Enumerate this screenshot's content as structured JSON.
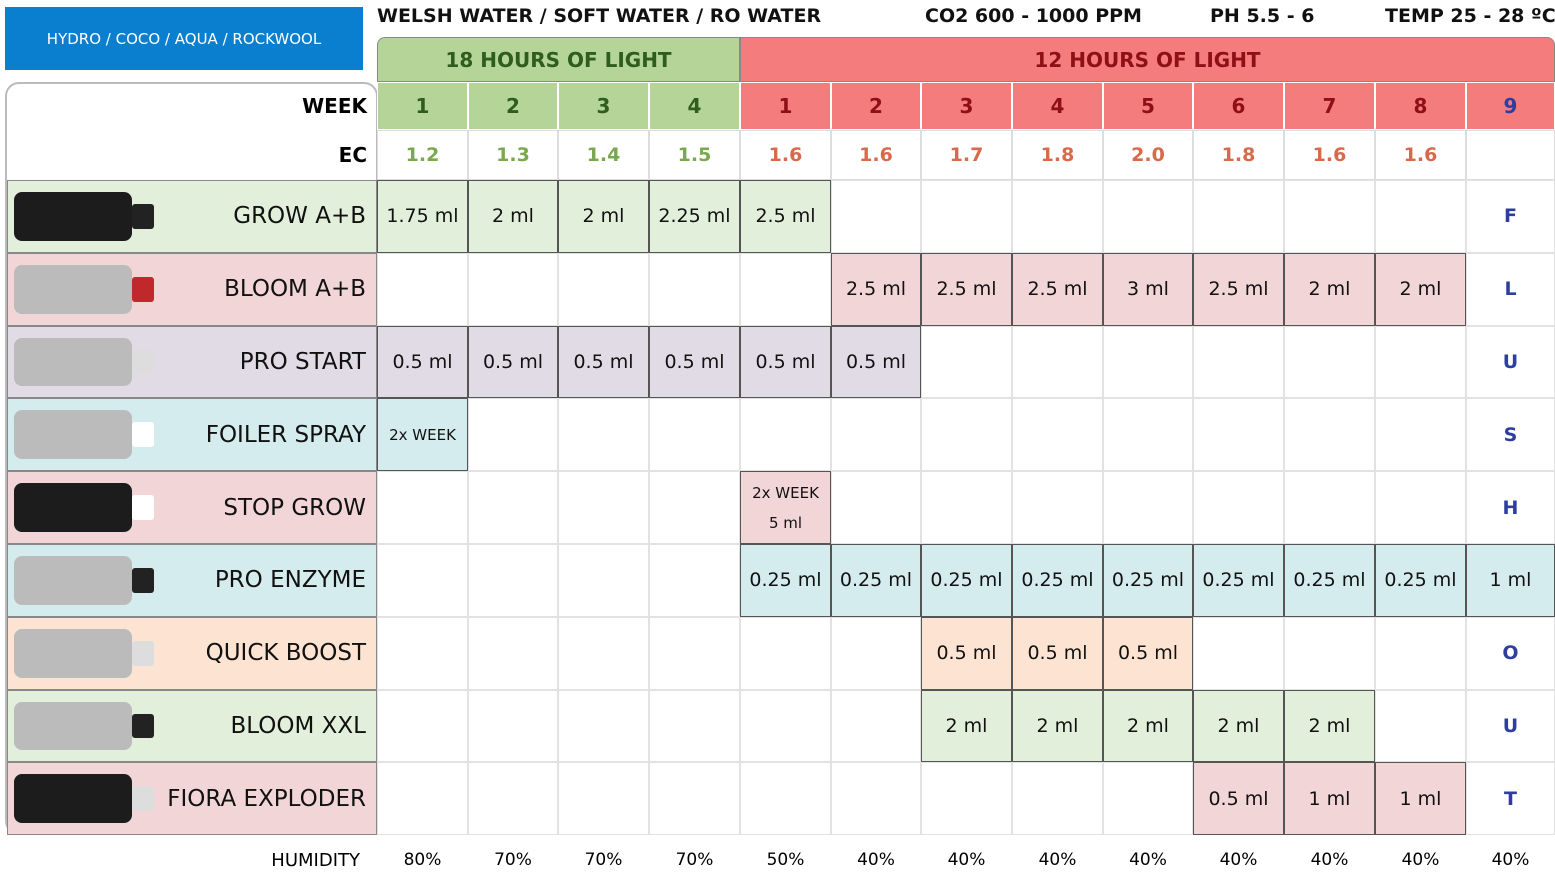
{
  "header": {
    "substrate": "HYDRO / COCO / AQUA / ROCKWOOL",
    "water": "WELSH WATER / SOFT WATER / RO WATER",
    "co2": "CO2 600 - 1000 PPM",
    "ph": "PH 5.5 - 6",
    "temp": "TEMP 25 - 28 ºC"
  },
  "light": [
    "18 HOURS OF LIGHT",
    "12 HOURS OF LIGHT"
  ],
  "week_label": "WEEK",
  "weeks": [
    "1",
    "2",
    "3",
    "4",
    "1",
    "2",
    "3",
    "4",
    "5",
    "6",
    "7",
    "8",
    "9"
  ],
  "ec_label": "EC",
  "ec": [
    "1.2",
    "1.3",
    "1.4",
    "1.5",
    "1.6",
    "1.6",
    "1.7",
    "1.8",
    "2.0",
    "1.8",
    "1.6",
    "1.6",
    null
  ],
  "products": [
    {
      "name": "GROW A+B",
      "color": "#e2efda",
      "cells": [
        "1.75 ml",
        "2 ml",
        "2 ml",
        "2.25 ml",
        "2.5 ml",
        null,
        null,
        null,
        null,
        null,
        null,
        null,
        "F"
      ]
    },
    {
      "name": "BLOOM A+B",
      "color": "#f2d5d7",
      "cells": [
        null,
        null,
        null,
        null,
        null,
        "2.5 ml",
        "2.5 ml",
        "2.5 ml",
        "3 ml",
        "2.5 ml",
        "2 ml",
        "2 ml",
        "L"
      ]
    },
    {
      "name": "PRO START",
      "color": "#e1dbe6",
      "cells": [
        "0.5 ml",
        "0.5 ml",
        "0.5 ml",
        "0.5 ml",
        "0.5 ml",
        "0.5 ml",
        null,
        null,
        null,
        null,
        null,
        null,
        "U"
      ]
    },
    {
      "name": "FOILER SPRAY",
      "color": "#d5ecee",
      "cells": [
        "2x WEEK",
        null,
        null,
        null,
        null,
        null,
        null,
        null,
        null,
        null,
        null,
        null,
        "S"
      ]
    },
    {
      "name": "STOP GROW",
      "color": "#f2d5d7",
      "cells": [
        null,
        null,
        null,
        null,
        [
          "2x WEEK",
          "5 ml"
        ],
        null,
        null,
        null,
        null,
        null,
        null,
        null,
        "H"
      ]
    },
    {
      "name": "PRO ENZYME",
      "color": "#d5ecee",
      "cells": [
        null,
        null,
        null,
        null,
        "0.25 ml",
        "0.25 ml",
        "0.25 ml",
        "0.25 ml",
        "0.25 ml",
        "0.25 ml",
        "0.25 ml",
        "0.25 ml",
        "1 ml"
      ]
    },
    {
      "name": "QUICK BOOST",
      "color": "#fde4d2",
      "cells": [
        null,
        null,
        null,
        null,
        null,
        null,
        "0.5 ml",
        "0.5 ml",
        "0.5 ml",
        null,
        null,
        null,
        "O"
      ]
    },
    {
      "name": "BLOOM XXL",
      "color": "#e2efda",
      "cells": [
        null,
        null,
        null,
        null,
        null,
        null,
        "2 ml",
        "2 ml",
        "2 ml",
        "2 ml",
        "2 ml",
        null,
        "U"
      ]
    },
    {
      "name": "FIORA EXPLODER",
      "color": "#f2d5d7",
      "cells": [
        null,
        null,
        null,
        null,
        null,
        null,
        null,
        null,
        null,
        "0.5 ml",
        "1 ml",
        "1 ml",
        "T"
      ]
    }
  ],
  "humidity_label": "HUMIDITY",
  "humidity": [
    "80%",
    "70%",
    "70%",
    "70%",
    "50%",
    "40%",
    "40%",
    "40%",
    "40%",
    "40%",
    "40%",
    "40%",
    "40%"
  ]
}
